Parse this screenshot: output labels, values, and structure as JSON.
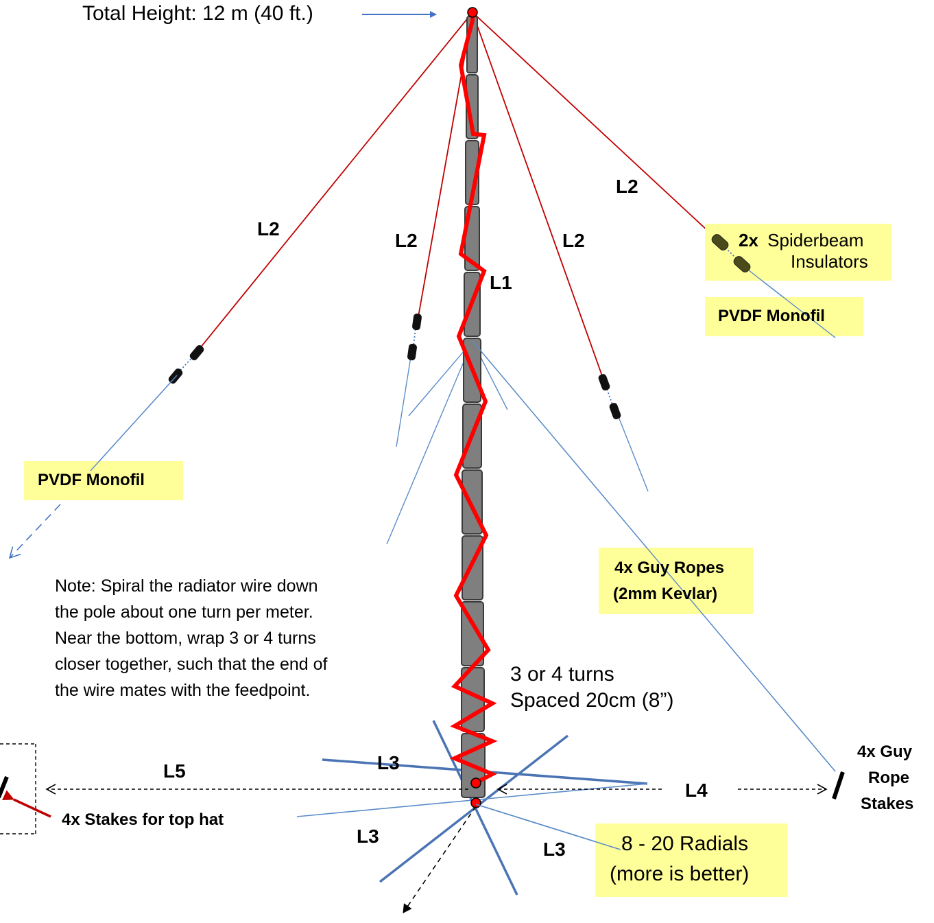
{
  "labels": {
    "total_height": "Total Height:  12 m (40 ft.)",
    "l1": "L1",
    "l2": "L2",
    "l3": "L3",
    "l4": "L4",
    "l5": "L5",
    "insulators_count": "2x",
    "insulators_name": "Spiderbeam",
    "insulators_word": "Insulators",
    "pvdf_monofil": "PVDF  Monofil",
    "guy_ropes_line1": "4x Guy Ropes",
    "guy_ropes_line2": "(2mm Kevlar)",
    "turns_line1": "3 or 4 turns",
    "turns_line2": "Spaced 20cm (8”)",
    "guy_stakes_line1": "4x  Guy",
    "guy_stakes_line2": "Rope",
    "guy_stakes_line3": "Stakes",
    "tophat_stakes": "4x  Stakes for top hat",
    "radials_line1": "8 - 20 Radials",
    "radials_line2": "(more is better)"
  },
  "note": [
    "Note:  Spiral the radiator wire down",
    "the pole about one turn per meter.",
    "Near the bottom, wrap 3 or 4 turns",
    "closer together, such that the end of",
    "the wire mates with the feedpoint."
  ],
  "colors": {
    "top_hat_wire": "#c00000",
    "radiator_wire": "#ff0000",
    "rope": "#5b8cc8",
    "radial": "#4a74b4",
    "pole_fill": "#7f7f7f",
    "pole_stroke": "#3a3a3a",
    "insulator": "#111111",
    "spiderbeam_insulator": "#4a4a1a",
    "label_box": "#ffff99",
    "arrow_blue": "#4472c4"
  }
}
